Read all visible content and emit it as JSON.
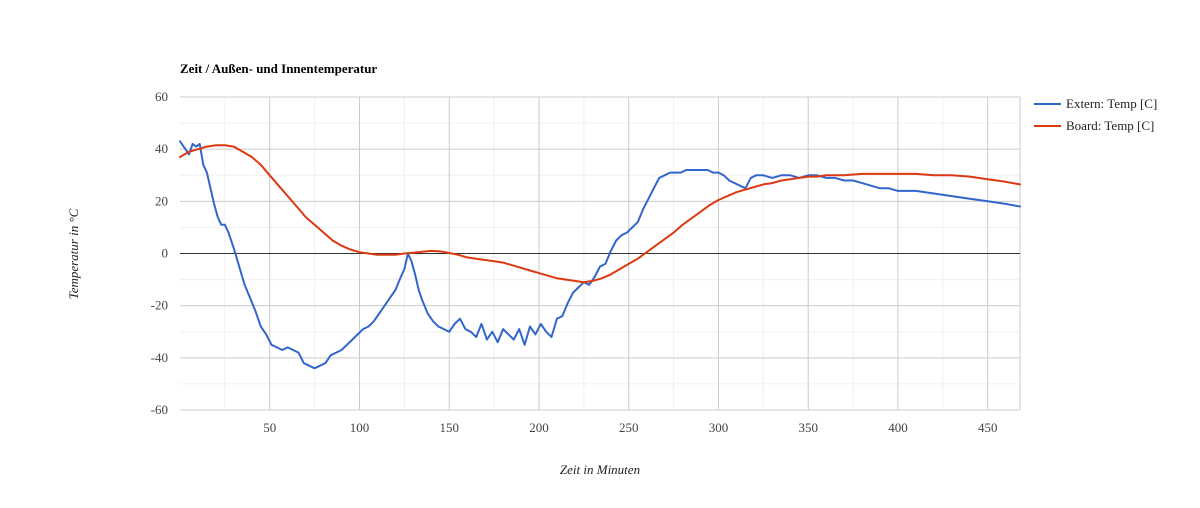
{
  "chart_data": {
    "type": "line",
    "title": "Zeit / Außen- und Innentemperatur",
    "xlabel": "Zeit in Minuten",
    "ylabel": "Temperatur in °C",
    "xlim": [
      0,
      468
    ],
    "ylim": [
      -60,
      60
    ],
    "x_ticks": [
      50,
      100,
      150,
      200,
      250,
      300,
      350,
      400,
      450
    ],
    "y_ticks": [
      -60,
      -40,
      -20,
      0,
      20,
      40,
      60
    ],
    "grid": true,
    "legend_position": "right",
    "series": [
      {
        "name": "Extern: Temp [C]",
        "color": "#3366cc",
        "x": [
          0,
          3,
          5,
          7,
          9,
          11,
          13,
          15,
          17,
          19,
          21,
          23,
          25,
          27,
          30,
          33,
          36,
          39,
          42,
          45,
          48,
          51,
          54,
          57,
          60,
          63,
          66,
          69,
          72,
          75,
          78,
          81,
          84,
          87,
          90,
          93,
          96,
          99,
          102,
          105,
          108,
          111,
          114,
          117,
          120,
          123,
          125,
          127,
          129,
          131,
          133,
          135,
          138,
          141,
          144,
          147,
          150,
          153,
          156,
          159,
          162,
          165,
          168,
          171,
          174,
          177,
          180,
          183,
          186,
          189,
          192,
          195,
          198,
          201,
          204,
          207,
          210,
          213,
          216,
          219,
          222,
          225,
          228,
          231,
          234,
          237,
          240,
          243,
          246,
          249,
          252,
          255,
          258,
          261,
          264,
          267,
          270,
          273,
          276,
          279,
          282,
          285,
          288,
          291,
          294,
          297,
          300,
          303,
          306,
          309,
          312,
          315,
          318,
          321,
          325,
          330,
          335,
          340,
          345,
          350,
          355,
          360,
          365,
          370,
          375,
          380,
          385,
          390,
          395,
          400,
          410,
          420,
          430,
          440,
          450,
          460,
          468
        ],
        "y": [
          43,
          40,
          38,
          42,
          41,
          42,
          34,
          31,
          25,
          19,
          14,
          11,
          11,
          8,
          2,
          -5,
          -12,
          -17,
          -22,
          -28,
          -31,
          -35,
          -36,
          -37,
          -36,
          -37,
          -38,
          -42,
          -43,
          -44,
          -43,
          -42,
          -39,
          -38,
          -37,
          -35,
          -33,
          -31,
          -29,
          -28,
          -26,
          -23,
          -20,
          -17,
          -14,
          -9,
          -6,
          0,
          -3,
          -8,
          -14,
          -18,
          -23,
          -26,
          -28,
          -29,
          -30,
          -27,
          -25,
          -29,
          -30,
          -32,
          -27,
          -33,
          -30,
          -34,
          -29,
          -31,
          -33,
          -29,
          -35,
          -28,
          -31,
          -27,
          -30,
          -32,
          -25,
          -24,
          -19,
          -15,
          -13,
          -11,
          -12,
          -9,
          -5,
          -4,
          1,
          5,
          7,
          8,
          10,
          12,
          17,
          21,
          25,
          29,
          30,
          31,
          31,
          31,
          32,
          32,
          32,
          32,
          32,
          31,
          31,
          30,
          28,
          27,
          26,
          25,
          29,
          30,
          30,
          29,
          30,
          30,
          29,
          30,
          30,
          29,
          29,
          28,
          28,
          27,
          26,
          25,
          25,
          24,
          24,
          23,
          22,
          21,
          20,
          19,
          18
        ]
      },
      {
        "name": "Board: Temp [C]",
        "color": "#dc3912",
        "x": [
          0,
          5,
          10,
          15,
          20,
          25,
          30,
          35,
          40,
          45,
          50,
          55,
          60,
          65,
          70,
          75,
          80,
          85,
          90,
          95,
          100,
          105,
          110,
          115,
          120,
          125,
          130,
          135,
          140,
          145,
          150,
          155,
          160,
          165,
          170,
          175,
          180,
          185,
          190,
          195,
          200,
          205,
          210,
          215,
          220,
          225,
          230,
          235,
          240,
          245,
          250,
          255,
          260,
          265,
          270,
          275,
          280,
          285,
          290,
          295,
          300,
          305,
          310,
          315,
          320,
          325,
          330,
          335,
          340,
          345,
          350,
          355,
          360,
          370,
          380,
          390,
          400,
          410,
          420,
          430,
          440,
          450,
          460,
          468
        ],
        "y": [
          37,
          39,
          40,
          41,
          41.5,
          41.5,
          41,
          39,
          37,
          34,
          30,
          26,
          22,
          18,
          14,
          11,
          8,
          5,
          3,
          1.5,
          0.5,
          0,
          -0.5,
          -0.5,
          -0.5,
          0,
          0.3,
          0.7,
          1,
          0.8,
          0.2,
          -0.5,
          -1.5,
          -2,
          -2.5,
          -3,
          -3.5,
          -4.5,
          -5.5,
          -6.5,
          -7.5,
          -8.5,
          -9.5,
          -10,
          -10.5,
          -11,
          -10.5,
          -9.5,
          -8,
          -6,
          -4,
          -2,
          0.5,
          3,
          5.5,
          8,
          11,
          13.5,
          16,
          18.5,
          20.5,
          22,
          23.5,
          24.5,
          25.5,
          26.5,
          27,
          28,
          28.5,
          29,
          29.5,
          29.5,
          30,
          30,
          30.5,
          30.5,
          30.5,
          30.5,
          30,
          30,
          29.5,
          28.5,
          27.5,
          26.5
        ]
      }
    ]
  }
}
